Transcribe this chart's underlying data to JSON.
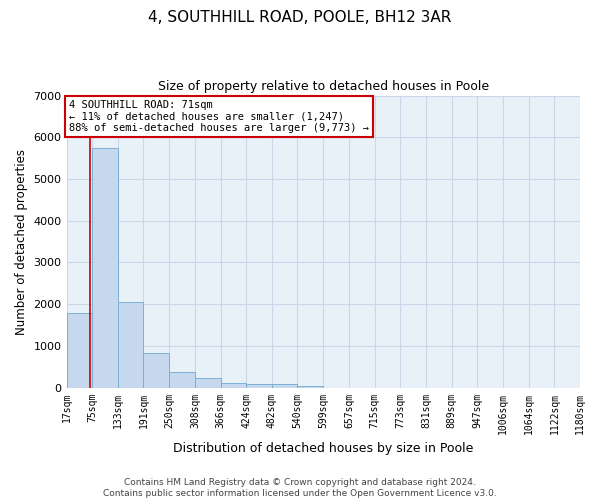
{
  "title": "4, SOUTHHILL ROAD, POOLE, BH12 3AR",
  "subtitle": "Size of property relative to detached houses in Poole",
  "xlabel": "Distribution of detached houses by size in Poole",
  "ylabel": "Number of detached properties",
  "bar_color": "#c5d8ee",
  "bar_edge_color": "#7bafd4",
  "grid_color": "#c8d8e8",
  "annotation_box_color": "#cc0000",
  "vline_color": "#cc0000",
  "footer_line1": "Contains HM Land Registry data © Crown copyright and database right 2024.",
  "footer_line2": "Contains public sector information licensed under the Open Government Licence v3.0.",
  "annotation_title": "4 SOUTHHILL ROAD: 71sqm",
  "annotation_line1": "← 11% of detached houses are smaller (1,247)",
  "annotation_line2": "88% of semi-detached houses are larger (9,773) →",
  "property_size": 71,
  "bin_edges": [
    17,
    75,
    133,
    191,
    250,
    308,
    366,
    424,
    482,
    540,
    599,
    657,
    715,
    773,
    831,
    889,
    947,
    1006,
    1064,
    1122,
    1180
  ],
  "bar_heights": [
    1800,
    5750,
    2050,
    820,
    370,
    230,
    120,
    80,
    80,
    40,
    0,
    0,
    0,
    0,
    0,
    0,
    0,
    0,
    0,
    0
  ],
  "ylim": [
    0,
    7000
  ],
  "yticks": [
    0,
    1000,
    2000,
    3000,
    4000,
    5000,
    6000,
    7000
  ],
  "background_color": "#ffffff",
  "plot_bg_color": "#e8f0f8"
}
